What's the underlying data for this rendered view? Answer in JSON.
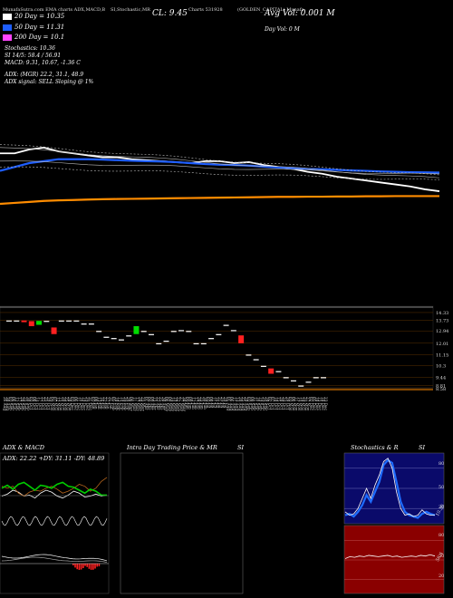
{
  "header": {
    "items": [
      "MunafaSutra.com",
      "EMA charts",
      "ADX,MACD,B",
      "SI,Stochastic,MR",
      "Charts 531928",
      "(GOLDEN_CAPITAL) Munafa"
    ],
    "cl": "CL: 9.45",
    "avg_vol": "Avg Vol: 0.001 M",
    "day_vol": "Day Vol: 0   M"
  },
  "legend": {
    "ema20": "20  Day = 10.35",
    "ema50": "50  Day = 11.31",
    "ema200": "200  Day = 10.1",
    "colors": {
      "ema20": "#ffffff",
      "ema50": "#1e5eff",
      "ema200": "#ff44ff"
    }
  },
  "indicators": {
    "stochastics": "Stochastics: 10.36",
    "si": "SI 14/5: 58.4  / 56.91",
    "macd": "MACD: 9.31, 10.67, -1.36  C",
    "adx": "ADX:                    (MGR) 22.2, 31.1, 48.9",
    "adx_signal": "ADX  signal: SELL  Sloping @ 1%"
  },
  "price_axis": [
    "14.33",
    "13.73",
    "12.94",
    "12.01",
    "11.15",
    "10.3",
    "9.44",
    "8.81",
    "8.58"
  ],
  "dates": [
    "26 Aug",
    "30 Aug",
    "03 Sep",
    "06 Sep",
    "12 Sep",
    "17 Sep",
    "20 Sep",
    "25 Sep",
    "30 Sep",
    "03 Oct",
    "08 Oct",
    "14 Oct",
    "17 Oct",
    "22 Oct",
    "25 Oct",
    "29 Oct",
    "04 Nov",
    "07 Nov",
    "12 Nov",
    "15 Nov",
    "20 Nov",
    "25 Nov",
    "28 Nov",
    "03 Dec",
    "06 Dec",
    "11 Dec",
    "16 Dec",
    "19 Dec",
    "24 Dec",
    "31 Dec",
    "03 Jan",
    "08 Jan",
    "13 Jan",
    "16 Jan",
    "22 Jan",
    "27 Jan",
    "31 Jan",
    "05 Feb",
    "10 Feb",
    "13 Feb",
    "19 Feb",
    "24 Feb",
    "28 Feb",
    "06 Mar",
    "11 Mar",
    "17 Mar",
    "20 Mar",
    "25 Mar",
    "01 Apr",
    "04 Apr",
    "09 Apr",
    "15 Apr",
    "22 Apr",
    "25 Apr",
    "30 Apr",
    "06 May",
    "09 May",
    "14 May",
    "19 May",
    "22 May",
    "27 May",
    "30 May",
    "04 Jun",
    "09 Jun",
    "12 Jun",
    "17 Jun",
    "20 Jun",
    "25 Jun",
    "30 Jun",
    "03 Jul",
    "08 Jul",
    "11 Jul",
    "16 Jul",
    "21 Jul",
    "24 Jul",
    "29 Jul",
    "01 Aug",
    "06 Aug",
    "11 Aug",
    "14 Aug",
    "20 Aug",
    "25 Aug",
    "29 Aug",
    "03 Sep",
    "08 Sep",
    "11 Sep",
    "16 Sep",
    "19 Sep",
    "24 Sep",
    "29 Sep",
    "02 Oct",
    "07 Oct",
    "10 Oct",
    "15 Oct",
    "20 Oct",
    "24 Oct",
    "29 Oct",
    "03 Nov",
    "06 Nov",
    "11 Nov",
    "14 Nov",
    "19 Nov",
    "24 Nov",
    "27 Nov",
    "02 Dec",
    "05 Dec",
    "10 Dec",
    "15 Dec",
    "18 Dec",
    "23 Dec"
  ],
  "panels": {
    "adx_title": "ADX  & MACD",
    "adx_values": "ADX: 22.22  +DY: 31.11  -DY: 48.89",
    "mrsi_title": "Intra  Day Trading Price  & MR",
    "mrsi_si": "SI",
    "stoch_title": "Stochastics & R",
    "stoch_si": "SI",
    "stoch_axis": [
      "80",
      "50",
      "20"
    ],
    "stoch_value": "10.36",
    "rsi_axis": [
      "80",
      "50",
      "20"
    ],
    "rsi_value": "56.4"
  },
  "chart_data": {
    "type": "line",
    "title": "",
    "series": [
      {
        "name": "20  Day",
        "color": "#ffffff",
        "values": [
          12.3,
          12.3,
          12.5,
          12.6,
          12.4,
          12.3,
          12.2,
          12.1,
          12.1,
          12.0,
          11.95,
          11.9,
          11.85,
          11.8,
          11.9,
          11.9,
          11.8,
          11.85,
          11.7,
          11.6,
          11.5,
          11.35,
          11.25,
          11.1,
          11.0,
          10.9,
          10.8,
          10.7,
          10.6,
          10.45,
          10.35
        ]
      },
      {
        "name": "50  Day",
        "color": "#1e5eff",
        "values": [
          11.4,
          11.6,
          11.8,
          11.9,
          12.0,
          12.0,
          12.0,
          11.98,
          11.95,
          11.92,
          11.9,
          11.88,
          11.85,
          11.8,
          11.75,
          11.72,
          11.7,
          11.67,
          11.62,
          11.58,
          11.55,
          11.5,
          11.48,
          11.45,
          11.42,
          11.4,
          11.37,
          11.35,
          11.33,
          11.32,
          11.31
        ]
      },
      {
        "name": "200  Day",
        "color": "#ff44ff",
        "values": [
          9.7,
          9.75,
          9.8,
          9.85,
          9.88,
          9.9,
          9.92,
          9.94,
          9.95,
          9.96,
          9.97,
          9.98,
          9.99,
          10.0,
          10.01,
          10.02,
          10.03,
          10.04,
          10.05,
          10.06,
          10.06,
          10.07,
          10.07,
          10.08,
          10.08,
          10.09,
          10.09,
          10.1,
          10.1,
          10.1,
          10.1
        ]
      }
    ],
    "price_ylim": [
      8.5,
      15.0
    ],
    "candles": [
      {
        "o": 13.73,
        "c": 13.73
      },
      {
        "o": 13.73,
        "c": 13.73
      },
      {
        "o": 13.73,
        "c": 13.6
      },
      {
        "o": 13.68,
        "c": 13.3
      },
      {
        "o": 13.4,
        "c": 13.7
      },
      {
        "o": 13.7,
        "c": 13.7
      },
      {
        "o": 13.2,
        "c": 12.7
      },
      {
        "o": 13.73,
        "c": 13.73
      },
      {
        "o": 13.73,
        "c": 13.73
      },
      {
        "o": 13.73,
        "c": 13.73
      },
      {
        "o": 13.5,
        "c": 13.5
      },
      {
        "o": 13.5,
        "c": 13.5
      },
      {
        "o": 12.94,
        "c": 12.94
      },
      {
        "o": 12.5,
        "c": 12.5
      },
      {
        "o": 12.4,
        "c": 12.4
      },
      {
        "o": 12.3,
        "c": 12.3
      },
      {
        "o": 12.6,
        "c": 12.6
      },
      {
        "o": 12.7,
        "c": 13.3
      },
      {
        "o": 12.94,
        "c": 12.94
      },
      {
        "o": 12.7,
        "c": 12.7
      },
      {
        "o": 12.01,
        "c": 12.01
      },
      {
        "o": 12.2,
        "c": 12.2
      },
      {
        "o": 12.94,
        "c": 12.94
      },
      {
        "o": 13.0,
        "c": 13.0
      },
      {
        "o": 12.94,
        "c": 12.94
      },
      {
        "o": 12.01,
        "c": 12.01
      },
      {
        "o": 12.01,
        "c": 12.01
      },
      {
        "o": 12.4,
        "c": 12.4
      },
      {
        "o": 12.7,
        "c": 12.7
      },
      {
        "o": 13.4,
        "c": 13.4
      },
      {
        "o": 13.0,
        "c": 13.0
      },
      {
        "o": 12.6,
        "c": 12.01
      },
      {
        "o": 11.15,
        "c": 11.15
      },
      {
        "o": 10.8,
        "c": 10.8
      },
      {
        "o": 10.3,
        "c": 10.3
      },
      {
        "o": 10.1,
        "c": 9.7
      },
      {
        "o": 9.9,
        "c": 9.9
      },
      {
        "o": 9.44,
        "c": 9.44
      },
      {
        "o": 9.2,
        "c": 9.2
      },
      {
        "o": 8.81,
        "c": 8.81
      },
      {
        "o": 9.1,
        "c": 9.1
      },
      {
        "o": 9.44,
        "c": 9.44
      },
      {
        "o": 9.44,
        "c": 9.44
      }
    ],
    "adx": {
      "adx": 22.22,
      "plus_dy": 31.11,
      "minus_dy": 48.89
    },
    "stochastic": 10.36,
    "rsi": 56.4
  }
}
